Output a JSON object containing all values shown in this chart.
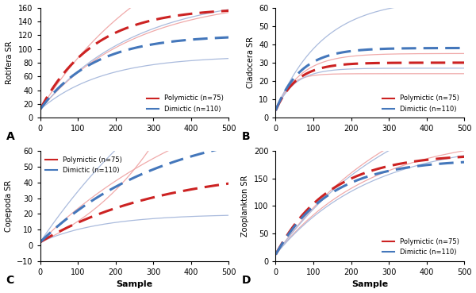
{
  "panels": [
    {
      "label": "A",
      "ylabel": "Rotifera SR",
      "ylim": [
        0,
        160
      ],
      "yticks": [
        0,
        20,
        40,
        60,
        80,
        100,
        120,
        140,
        160
      ],
      "poly_mean": {
        "a": 160,
        "b": 0.007
      },
      "poly_lo": {
        "a": 175,
        "b": 0.004
      },
      "poly_hi": {
        "a": 300,
        "b": 0.003
      },
      "dim_mean": {
        "a": 120,
        "b": 0.007
      },
      "dim_lo": {
        "a": 90,
        "b": 0.006
      },
      "dim_hi": {
        "a": 180,
        "b": 0.004
      },
      "start_poly": 12,
      "start_dim": 12
    },
    {
      "label": "B",
      "ylabel": "Cladocera SR",
      "ylim": [
        0,
        60
      ],
      "yticks": [
        0,
        10,
        20,
        30,
        40,
        50,
        60
      ],
      "poly_mean": {
        "a": 30,
        "b": 0.018
      },
      "poly_lo": {
        "a": 24,
        "b": 0.03
      },
      "poly_hi": {
        "a": 35,
        "b": 0.015
      },
      "dim_mean": {
        "a": 38,
        "b": 0.015
      },
      "dim_lo": {
        "a": 27,
        "b": 0.02
      },
      "dim_hi": {
        "a": 65,
        "b": 0.008
      },
      "start_poly": 4,
      "start_dim": 4
    },
    {
      "label": "C",
      "ylabel": "Copepoda SR",
      "ylim": [
        -10,
        60
      ],
      "yticks": [
        -10,
        0,
        10,
        20,
        30,
        40,
        50,
        60
      ],
      "poly_mean": {
        "a": 50,
        "b": 0.003
      },
      "poly_lo": {
        "a": -25,
        "b": -0.004
      },
      "poly_hi": {
        "a": 120,
        "b": 0.002
      },
      "dim_mean": {
        "a": 80,
        "b": 0.003
      },
      "dim_lo": {
        "a": 20,
        "b": 0.006
      },
      "dim_hi": {
        "a": 180,
        "b": 0.002
      },
      "start_poly": 2,
      "start_dim": 2
    },
    {
      "label": "D",
      "ylabel": "Zooplankton SR",
      "ylim": [
        0,
        200
      ],
      "yticks": [
        0,
        50,
        100,
        150,
        200
      ],
      "poly_mean": {
        "a": 195,
        "b": 0.007
      },
      "poly_lo": {
        "a": 230,
        "b": 0.004
      },
      "poly_hi": {
        "a": 340,
        "b": 0.003
      },
      "dim_mean": {
        "a": 185,
        "b": 0.007
      },
      "dim_lo": {
        "a": 220,
        "b": 0.004
      },
      "dim_hi": {
        "a": 330,
        "b": 0.003
      },
      "start_poly": 12,
      "start_dim": 12
    }
  ],
  "poly_color": "#cc2222",
  "dim_color": "#4477bb",
  "poly_ci_color": "#f0aaaa",
  "dim_ci_color": "#aabbdd",
  "legend_poly": "Polymictic (n=75)",
  "legend_dim": "Dimictic (n=110)",
  "xlabel": "Sample",
  "xlim": [
    0,
    500
  ],
  "xticks": [
    0,
    100,
    200,
    300,
    400,
    500
  ]
}
